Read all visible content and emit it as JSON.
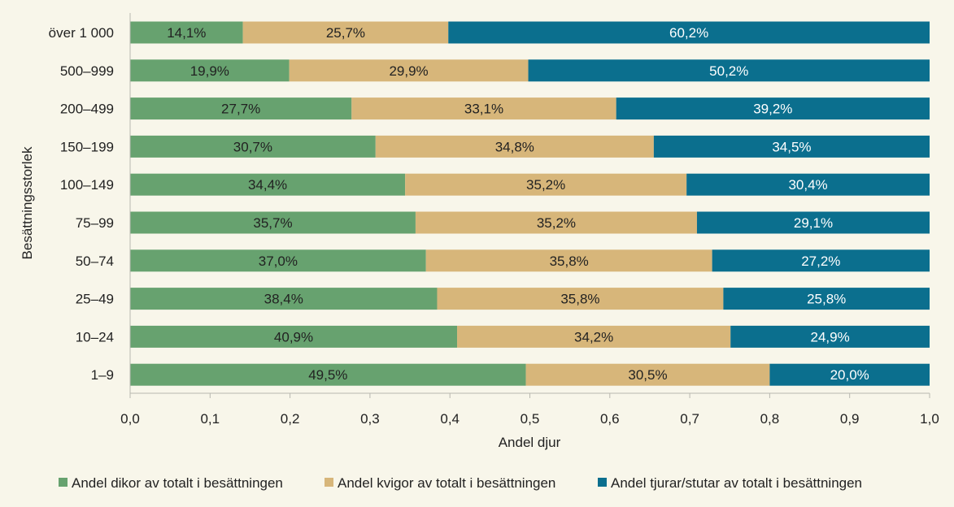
{
  "chart_data": {
    "type": "bar",
    "orientation": "horizontal",
    "stacked": true,
    "categories": [
      "över 1 000",
      "500–999",
      "200–499",
      "150–199",
      "100–149",
      "75–99",
      "50–74",
      "25–49",
      "10–24",
      "1–9"
    ],
    "series": [
      {
        "name": "Andel dikor av totalt i besättningen",
        "color": "#67a26f",
        "label_color": "#222222",
        "values": [
          0.141,
          0.199,
          0.277,
          0.307,
          0.344,
          0.357,
          0.37,
          0.384,
          0.409,
          0.495
        ],
        "labels": [
          "14,1%",
          "19,9%",
          "27,7%",
          "30,7%",
          "34,4%",
          "35,7%",
          "37,0%",
          "38,4%",
          "40,9%",
          "49,5%"
        ]
      },
      {
        "name": "Andel kvigor av totalt i besättningen",
        "color": "#d7b67a",
        "label_color": "#222222",
        "values": [
          0.257,
          0.299,
          0.331,
          0.348,
          0.352,
          0.352,
          0.358,
          0.358,
          0.342,
          0.305
        ],
        "labels": [
          "25,7%",
          "29,9%",
          "33,1%",
          "34,8%",
          "35,2%",
          "35,2%",
          "35,8%",
          "35,8%",
          "34,2%",
          "30,5%"
        ]
      },
      {
        "name": "Andel tjurar/stutar av totalt i besättningen",
        "color": "#0b6f8e",
        "label_color": "#ffffff",
        "values": [
          0.602,
          0.502,
          0.392,
          0.345,
          0.304,
          0.291,
          0.272,
          0.258,
          0.249,
          0.2
        ],
        "labels": [
          "60,2%",
          "50,2%",
          "39,2%",
          "34,5%",
          "30,4%",
          "29,1%",
          "27,2%",
          "25,8%",
          "24,9%",
          "20,0%"
        ]
      }
    ],
    "xlabel": "Andel djur",
    "ylabel": "Besättningsstorlek",
    "xlim": [
      0,
      1
    ],
    "xticks": [
      0,
      0.1,
      0.2,
      0.3,
      0.4,
      0.5,
      0.6,
      0.7,
      0.8,
      0.9,
      1.0
    ],
    "xtick_labels": [
      "0,0",
      "0,1",
      "0,2",
      "0,3",
      "0,4",
      "0,5",
      "0,6",
      "0,7",
      "0,8",
      "0,9",
      "1,0"
    ],
    "grid": false,
    "legend_position": "bottom"
  }
}
